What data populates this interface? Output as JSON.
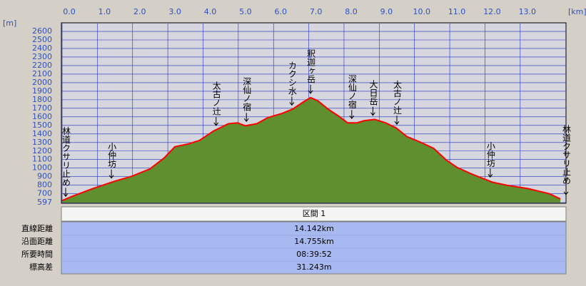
{
  "chart_data": {
    "type": "line",
    "x_unit": "[km]",
    "y_unit": "[m]",
    "x": [
      0,
      0.26,
      0.87,
      1.48,
      1.98,
      2.49,
      2.9,
      3.2,
      3.6,
      3.9,
      4.3,
      4.72,
      4.98,
      5.2,
      5.53,
      5.83,
      6.24,
      6.54,
      6.85,
      7.05,
      7.25,
      7.55,
      7.86,
      8.1,
      8.37,
      8.57,
      8.87,
      9.18,
      9.48,
      9.78,
      10.19,
      10.55,
      10.9,
      11.2,
      11.6,
      12.21,
      12.62,
      13.23,
      13.83,
      14.14
    ],
    "values": [
      620,
      665,
      760,
      845,
      905,
      990,
      1120,
      1250,
      1285,
      1325,
      1435,
      1520,
      1530,
      1495,
      1520,
      1590,
      1640,
      1690,
      1775,
      1825,
      1790,
      1690,
      1605,
      1530,
      1530,
      1555,
      1570,
      1530,
      1470,
      1370,
      1300,
      1230,
      1095,
      1010,
      935,
      835,
      800,
      760,
      700,
      640
    ],
    "color": "#ff0000",
    "fill_color": "#5f8f2f",
    "grid": true,
    "xlim": [
      0,
      14.3
    ],
    "ylim": [
      597,
      2692
    ],
    "xticks": [
      {
        "value": 0,
        "label": "0.0"
      },
      {
        "value": 1,
        "label": "1.0"
      },
      {
        "value": 2,
        "label": "2.0"
      },
      {
        "value": 3,
        "label": "3.0"
      },
      {
        "value": 4,
        "label": "4.0"
      },
      {
        "value": 5,
        "label": "5.0"
      },
      {
        "value": 6,
        "label": "6.0"
      },
      {
        "value": 7,
        "label": "7.0"
      },
      {
        "value": 8,
        "label": "8.0"
      },
      {
        "value": 9,
        "label": "9.0"
      },
      {
        "value": 10,
        "label": "10.0"
      },
      {
        "value": 11,
        "label": "11.0"
      },
      {
        "value": 12,
        "label": "12.0"
      },
      {
        "value": 13,
        "label": "13.0"
      }
    ],
    "yticks": [
      597,
      700,
      800,
      900,
      1000,
      1100,
      1200,
      1300,
      1400,
      1500,
      1600,
      1700,
      1800,
      1900,
      2000,
      2100,
      2200,
      2300,
      2400,
      2500,
      2600
    ],
    "annotations": [
      {
        "text": "林道クサリ止め",
        "x": 0
      },
      {
        "text": "小仲坊",
        "x": 1.4
      },
      {
        "text": "太古ノ辻",
        "x": 4.37
      },
      {
        "text": "深仙ノ宿",
        "x": 5.23
      },
      {
        "text": "カクシ水",
        "x": 6.52
      },
      {
        "text": "釈迦ヶ岳",
        "x": 7.05
      },
      {
        "text": "深仙ノ宿",
        "x": 8.22
      },
      {
        "text": "大日岳",
        "x": 8.82
      },
      {
        "text": "太古ノ辻",
        "x": 9.5
      },
      {
        "text": "小仲坊",
        "x": 12.15
      },
      {
        "text": "林道クサリ止め",
        "x": 14.3
      }
    ]
  },
  "table": {
    "header": "区間 1",
    "rows": [
      [
        "直線距離",
        "14.142km"
      ],
      [
        "沿面距離",
        "14.755km"
      ],
      [
        "所要時間",
        "08:39:52"
      ],
      [
        "標高差",
        "31.243m"
      ]
    ]
  }
}
